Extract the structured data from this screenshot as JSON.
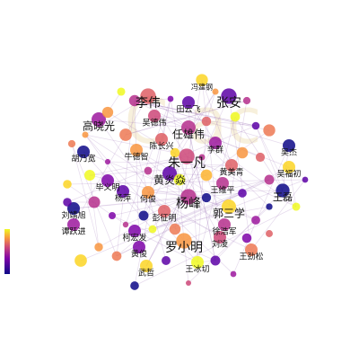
{
  "nodes": [
    {
      "label": "冯建钢"
    },
    {
      "label": "李伟"
    },
    {
      "label": "张安"
    },
    {
      "label": "田云飞"
    },
    {
      "label": "吴德伟"
    },
    {
      "label": "高晓光"
    },
    {
      "label": "任雄伟"
    },
    {
      "label": "陈长兴"
    },
    {
      "label": "李群"
    },
    {
      "label": "吴杰"
    },
    {
      "label": "胡乃宽"
    },
    {
      "label": "牛德智"
    },
    {
      "label": "朱一凡"
    },
    {
      "label": "黄美青"
    },
    {
      "label": "吴福初"
    },
    {
      "label": "黄炎焱"
    },
    {
      "label": "王维平"
    },
    {
      "label": "毕义明"
    },
    {
      "label": "杨峰"
    },
    {
      "label": "王磊"
    },
    {
      "label": "杨萍"
    },
    {
      "label": "何俊"
    },
    {
      "label": "郭三学"
    },
    {
      "label": "刘靖旭"
    },
    {
      "label": "彭征明"
    },
    {
      "label": "谭跃进"
    },
    {
      "label": "徐浩军"
    },
    {
      "label": "柯宏发"
    },
    {
      "label": "罗小明"
    },
    {
      "label": "刘凌"
    },
    {
      "label": "黄俊"
    },
    {
      "label": "王劲松"
    },
    {
      "label": "武哲"
    },
    {
      "label": "王冰切"
    }
  ]
}
